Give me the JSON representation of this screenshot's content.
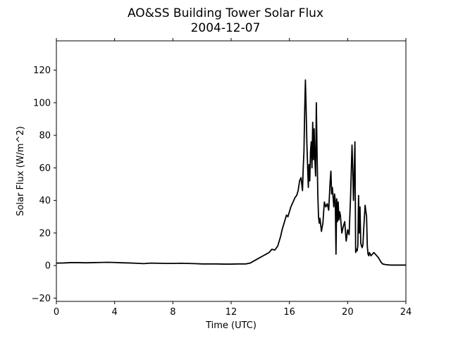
{
  "chart_data": {
    "type": "line",
    "title": "AO&SS Building Tower Solar Flux",
    "subtitle": "2004-12-07",
    "xlabel": "Time (UTC)",
    "ylabel": "Solar Flux (W/m^2)",
    "xlim": [
      0,
      24
    ],
    "ylim": [
      -22,
      138
    ],
    "xticks": [
      0,
      4,
      8,
      12,
      16,
      20,
      24
    ],
    "yticks": [
      -20,
      0,
      20,
      40,
      60,
      80,
      100,
      120
    ],
    "grid": false,
    "line_color": "#000000",
    "series": [
      {
        "x": [
          0,
          0.5,
          1,
          1.5,
          2,
          2.5,
          3,
          3.5,
          4,
          4.5,
          5,
          5.5,
          6,
          6.5,
          7,
          7.5,
          8,
          8.5,
          9,
          9.5,
          10,
          10.5,
          11,
          11.5,
          12,
          12.5,
          13,
          13.3,
          13.6,
          13.9,
          14.2,
          14.4,
          14.6,
          14.8,
          15.0,
          15.2,
          15.4,
          15.5,
          15.6,
          15.7,
          15.8,
          15.9,
          16.0,
          16.1,
          16.2,
          16.3,
          16.4,
          16.5,
          16.6,
          16.7,
          16.8,
          16.9,
          16.95,
          17.0,
          17.05,
          17.1,
          17.15,
          17.2,
          17.3,
          17.35,
          17.4,
          17.45,
          17.5,
          17.55,
          17.6,
          17.65,
          17.7,
          17.75,
          17.8,
          17.85,
          17.9,
          17.95,
          18.0,
          18.05,
          18.1,
          18.2,
          18.3,
          18.4,
          18.5,
          18.6,
          18.7,
          18.8,
          18.85,
          18.9,
          18.95,
          19.0,
          19.05,
          19.1,
          19.15,
          19.2,
          19.25,
          19.3,
          19.35,
          19.4,
          19.45,
          19.5,
          19.6,
          19.7,
          19.8,
          19.9,
          20.0,
          20.1,
          20.2,
          20.3,
          20.35,
          20.4,
          20.45,
          20.5,
          20.55,
          20.6,
          20.65,
          20.7,
          20.75,
          20.8,
          20.85,
          20.9,
          20.95,
          21.0,
          21.05,
          21.1,
          21.2,
          21.3,
          21.35,
          21.4,
          21.45,
          21.5,
          21.6,
          21.7,
          21.8,
          21.9,
          22.0,
          22.1,
          22.2,
          22.3,
          22.4,
          22.6,
          22.8,
          23.0,
          23.5,
          24
        ],
        "y": [
          1.5,
          1.6,
          1.8,
          1.8,
          1.7,
          1.8,
          1.9,
          2.0,
          1.9,
          1.7,
          1.6,
          1.4,
          1.2,
          1.5,
          1.4,
          1.3,
          1.3,
          1.4,
          1.3,
          1.2,
          1.0,
          1.0,
          1.0,
          0.9,
          0.9,
          1.0,
          1.0,
          1.5,
          3.0,
          4.5,
          6.0,
          7.0,
          8.0,
          10.0,
          9.5,
          12.0,
          18.0,
          22.0,
          25.0,
          28.0,
          31.0,
          30.0,
          33.0,
          36.0,
          38.0,
          40.0,
          42.0,
          43.0,
          46.0,
          52.0,
          54.0,
          46.0,
          60.0,
          70.0,
          95.0,
          114.0,
          96.0,
          75.0,
          48.0,
          62.0,
          52.0,
          70.0,
          76.0,
          60.0,
          88.0,
          65.0,
          84.0,
          65.0,
          55.0,
          100.0,
          70.0,
          44.0,
          30.0,
          26.0,
          29.0,
          21.0,
          26.0,
          39.0,
          36.0,
          38.0,
          34.0,
          52.0,
          58.0,
          44.0,
          48.0,
          42.0,
          36.0,
          44.0,
          40.0,
          7.0,
          41.0,
          27.0,
          39.0,
          28.0,
          33.0,
          31.0,
          20.0,
          24.0,
          27.0,
          15.0,
          22.0,
          19.0,
          42.0,
          74.0,
          60.0,
          40.0,
          56.0,
          76.0,
          8.0,
          10.0,
          9.0,
          12.0,
          43.0,
          20.0,
          36.0,
          14.0,
          12.0,
          11.0,
          13.0,
          22.0,
          37.0,
          30.0,
          12.0,
          7.0,
          6.0,
          8.0,
          6.0,
          7.0,
          8.0,
          7.0,
          6.0,
          5.0,
          3.5,
          2.0,
          1.0,
          0.6,
          0.4,
          0.3,
          0.3,
          0.3
        ]
      }
    ]
  }
}
